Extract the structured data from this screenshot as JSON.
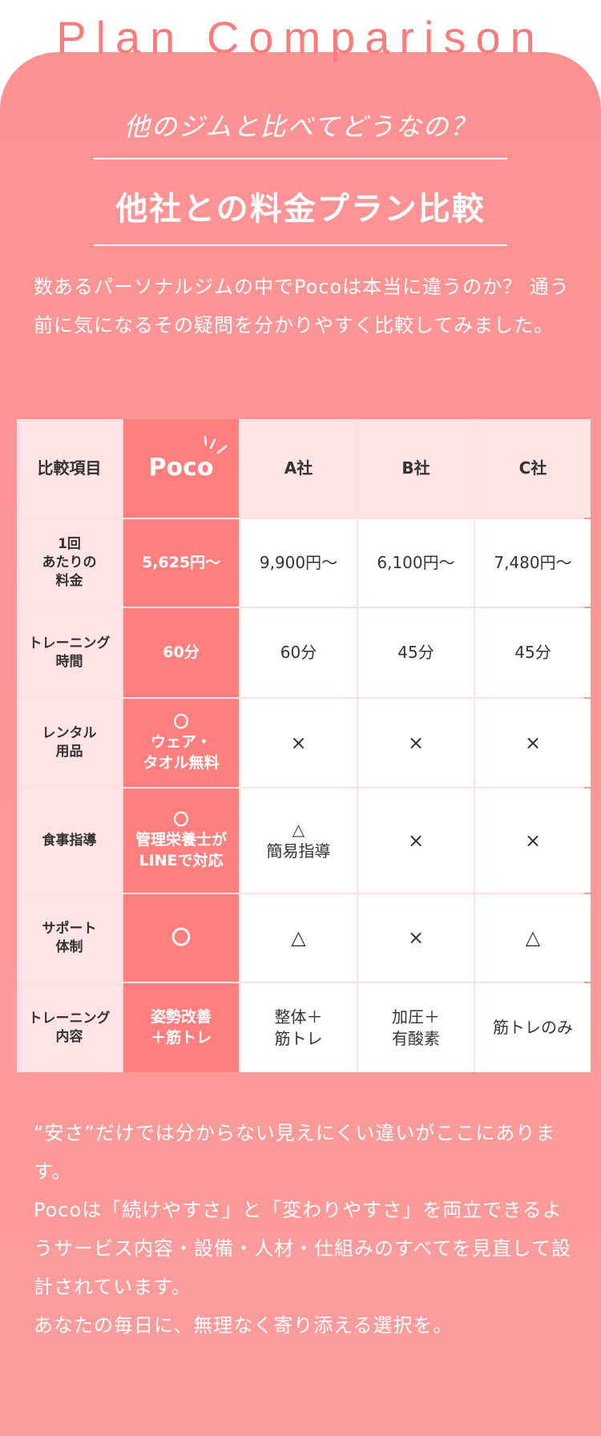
{
  "title": "Plan Comparison",
  "subtitle": "他のジムと比べてどうなの？",
  "heading": "他社との料金プラン比較",
  "intro": "数あるパーソナルジムの中でPocoは本当に違うのか？ 通う前に気になるその疑問を分かりやすく比較してみました。",
  "colors": {
    "accent": "#ff7f7f",
    "card": "#fd9494",
    "label_bg": "#ffe3e5",
    "title": "#ff7b7b"
  },
  "table": {
    "headers": [
      "比較項目",
      "Poco",
      "A社",
      "B社",
      "C社"
    ],
    "rows": [
      {
        "label": "1回\nあたりの\n料金",
        "cells": [
          "5,625円～",
          "9,900円～",
          "6,100円～",
          "7,480円～"
        ]
      },
      {
        "label": "トレーニング\n時間",
        "cells": [
          "60分",
          "60分",
          "45分",
          "45分"
        ]
      },
      {
        "label": "レンタル\n用品",
        "cells": [
          "〇\nウェア・\nタオル無料",
          "×",
          "×",
          "×"
        ]
      },
      {
        "label": "食事指導",
        "cells": [
          "〇\n管理栄養士が\nLINEで対応",
          "△\n簡易指導",
          "×",
          "×"
        ]
      },
      {
        "label": "サポート\n体制",
        "cells": [
          "〇",
          "△",
          "×",
          "△"
        ]
      },
      {
        "label": "トレーニング\n内容",
        "cells": [
          "姿勢改善\n＋筋トレ",
          "整体＋\n筋トレ",
          "加圧＋\n有酸素",
          "筋トレのみ"
        ]
      }
    ]
  },
  "outro": "“安さ”だけでは分からない見えにくい違いがここにあります。\nPocoは「続けやすさ」と「変わりやすさ」を両立できるようサービス内容・設備・人材・仕組みのすべてを見直して設計されています。\nあなたの毎日に、無理なく寄り添える選択を。"
}
